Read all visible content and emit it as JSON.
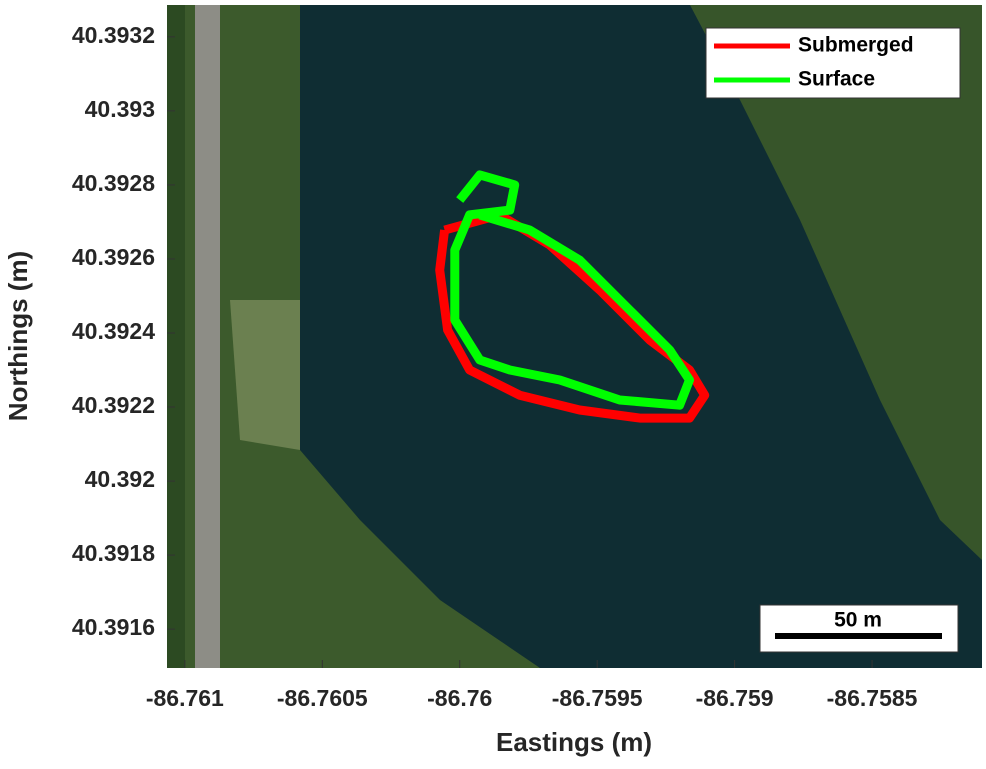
{
  "chart_data": {
    "type": "line",
    "xlabel": "Eastings (m)",
    "ylabel": "Northings (m)",
    "xlim": [
      -86.761065,
      -86.7581
    ],
    "ylim": [
      40.391495,
      40.393286
    ],
    "xticks": [
      -86.761,
      -86.7605,
      -86.76,
      -86.7595,
      -86.759,
      -86.7585
    ],
    "yticks": [
      40.3916,
      40.3918,
      40.392,
      40.3922,
      40.3924,
      40.3926,
      40.3928,
      40.393,
      40.3932
    ],
    "legend": "upper right",
    "scale_bar": "50 m",
    "series": [
      {
        "name": "Submerged",
        "color": "#ff0000",
        "x": [
          -86.760055,
          -86.760073,
          -86.760044,
          -86.759964,
          -86.759782,
          -86.759564,
          -86.759345,
          -86.759164,
          -86.759109,
          -86.759164,
          -86.759309,
          -86.759491,
          -86.759673,
          -86.759855,
          -86.760055
        ],
        "values": [
          40.392678,
          40.39257,
          40.392408,
          40.3923,
          40.392232,
          40.392192,
          40.39217,
          40.39217,
          40.392232,
          40.3923,
          40.392381,
          40.392516,
          40.392638,
          40.392719,
          40.392678
        ]
      },
      {
        "name": "Surface",
        "color": "#00ff00",
        "x": [
          -86.76,
          -86.759927,
          -86.7598,
          -86.759818,
          -86.759964,
          -86.760018,
          -86.760018,
          -86.759927,
          -86.759818,
          -86.759636,
          -86.759418,
          -86.7592,
          -86.759164,
          -86.759236,
          -86.759382,
          -86.759564,
          -86.759745,
          -86.759927
        ],
        "values": [
          40.392759,
          40.392827,
          40.3928,
          40.392732,
          40.392719,
          40.392624,
          40.392435,
          40.392327,
          40.3923,
          40.392273,
          40.392219,
          40.392205,
          40.392273,
          40.392354,
          40.392462,
          40.392597,
          40.392678,
          40.392719
        ]
      }
    ]
  }
}
